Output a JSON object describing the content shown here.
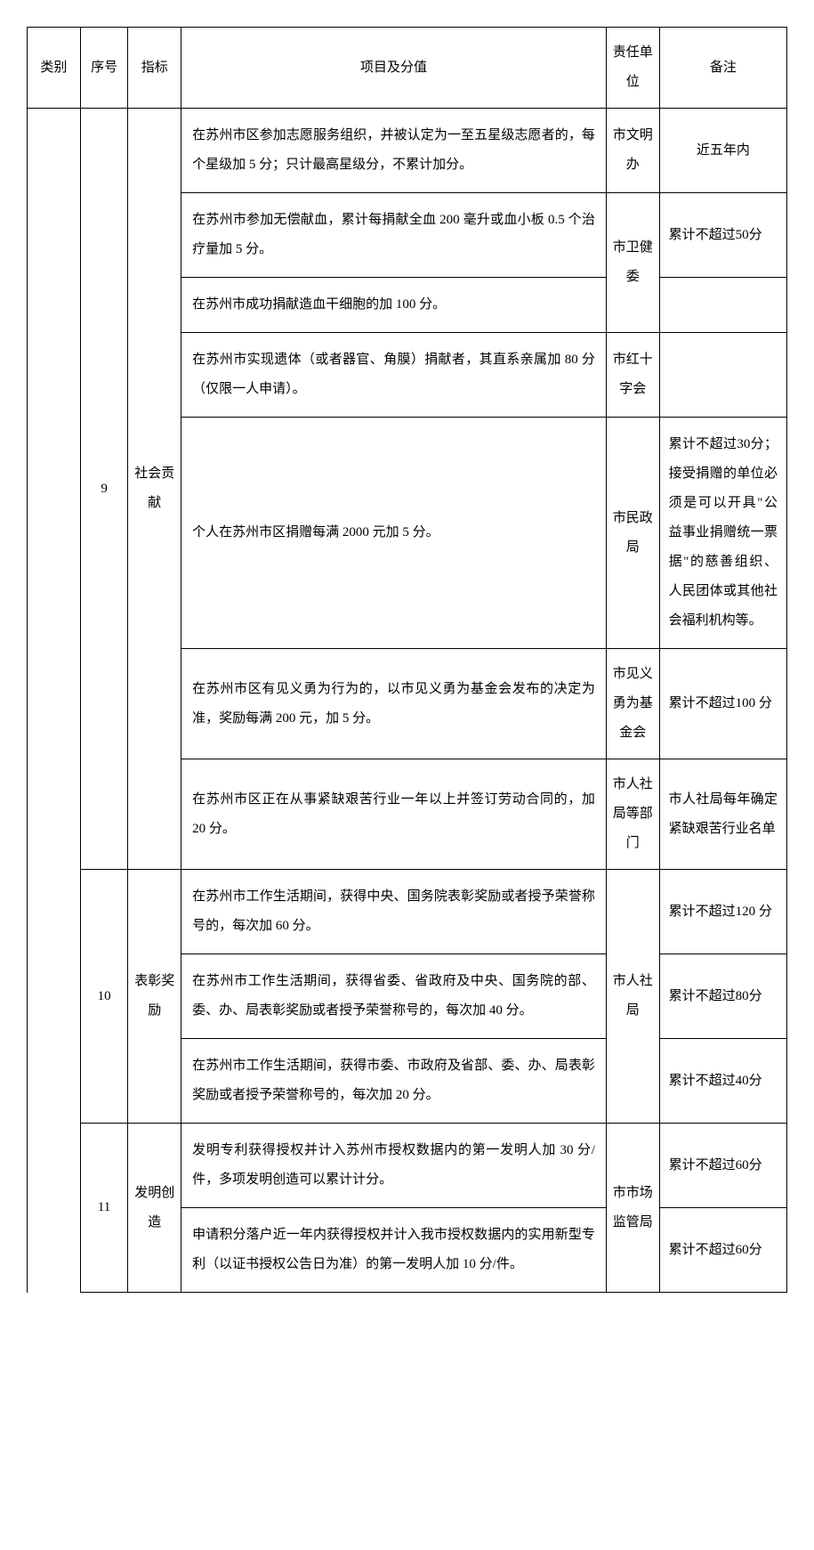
{
  "headers": {
    "category": "类别",
    "seq": "序号",
    "indicator": "指标",
    "project": "项目及分值",
    "unit": "责任单位",
    "remark": "备注"
  },
  "rows": [
    {
      "seq": "9",
      "indicator": "社会贡献",
      "items": [
        {
          "project": "在苏州市区参加志愿服务组织，并被认定为一至五星级志愿者的，每个星级加 5 分；只计最高星级分，不累计加分。",
          "unit": "市文明办",
          "remark": "近五年内"
        },
        {
          "project": "在苏州市参加无偿献血，累计每捐献全血 200 毫升或血小板 0.5 个治疗量加 5 分。",
          "unit": "市卫健委",
          "remark": "累计不超过50分"
        },
        {
          "project": "在苏州市成功捐献造血干细胞的加 100 分。",
          "unit": "",
          "remark": ""
        },
        {
          "project": "在苏州市实现遗体（或者器官、角膜）捐献者，其直系亲属加 80 分（仅限一人申请）。",
          "unit": "市红十字会",
          "remark": ""
        },
        {
          "project": "个人在苏州市区捐赠每满 2000 元加 5 分。",
          "unit": "市民政局",
          "remark": "累计不超过30分；接受捐赠的单位必须是可以开具\"公益事业捐赠统一票据\"的慈善组织、人民团体或其他社会福利机构等。"
        },
        {
          "project": "在苏州市区有见义勇为行为的，以市见义勇为基金会发布的决定为准，奖励每满 200 元，加 5 分。",
          "unit": "市见义勇为基金会",
          "remark": "累计不超过100 分"
        },
        {
          "project": "在苏州市区正在从事紧缺艰苦行业一年以上并签订劳动合同的，加 20 分。",
          "unit": "市人社局等部门",
          "remark": "市人社局每年确定紧缺艰苦行业名单"
        }
      ]
    },
    {
      "seq": "10",
      "indicator": "表彰奖励",
      "items": [
        {
          "project": "在苏州市工作生活期间，获得中央、国务院表彰奖励或者授予荣誉称号的，每次加 60 分。",
          "unit": "市人社局",
          "remark": "累计不超过120 分"
        },
        {
          "project": "在苏州市工作生活期间，获得省委、省政府及中央、国务院的部、委、办、局表彰奖励或者授予荣誉称号的，每次加 40 分。",
          "unit": "",
          "remark": "累计不超过80分"
        },
        {
          "project": "在苏州市工作生活期间，获得市委、市政府及省部、委、办、局表彰奖励或者授予荣誉称号的，每次加 20 分。",
          "unit": "",
          "remark": "累计不超过40分"
        }
      ]
    },
    {
      "seq": "11",
      "indicator": "发明创造",
      "items": [
        {
          "project": "发明专利获得授权并计入苏州市授权数据内的第一发明人加 30 分/件，多项发明创造可以累计计分。",
          "unit": "市市场监管局",
          "remark": "累计不超过60分"
        },
        {
          "project": "申请积分落户近一年内获得授权并计入我市授权数据内的实用新型专利（以证书授权公告日为准）的第一发明人加 10 分/件。",
          "unit": "",
          "remark": "累计不超过60分"
        }
      ]
    }
  ]
}
